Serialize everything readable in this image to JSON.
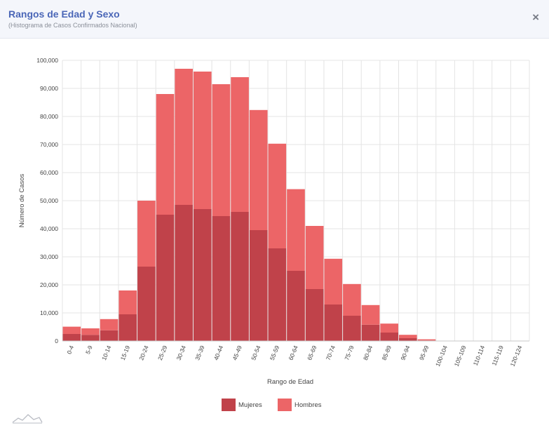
{
  "header": {
    "title": "Rangos de Edad y Sexo",
    "subtitle": "(Histograma de Casos Confirmados Nacional)",
    "close_icon": "×"
  },
  "colors": {
    "mujeres": "#c0424a",
    "hombres": "#ec6567",
    "grid": "#e4e4e4",
    "axis": "#c8c8c8",
    "text": "#444444",
    "title": "#4a66b7"
  },
  "chart_data": {
    "type": "bar",
    "stacked": true,
    "xlabel": "Rango de Edad",
    "ylabel": "Número de Casos",
    "ylim": [
      0,
      100000
    ],
    "yticks": [
      0,
      10000,
      20000,
      30000,
      40000,
      50000,
      60000,
      70000,
      80000,
      90000,
      100000
    ],
    "ytick_labels": [
      "0",
      "10,000",
      "20,000",
      "30,000",
      "40,000",
      "50,000",
      "60,000",
      "70,000",
      "80,000",
      "90,000",
      "100,000"
    ],
    "grid": true,
    "legend": "bottom-center",
    "categories": [
      "0-4",
      "5-9",
      "10-14",
      "15-19",
      "20-24",
      "25-29",
      "30-34",
      "35-39",
      "40-44",
      "45-49",
      "50-54",
      "55-59",
      "60-64",
      "65-69",
      "70-74",
      "75-79",
      "80-84",
      "85-89",
      "90-94",
      "95-99",
      "100-104",
      "105-109",
      "110-114",
      "115-119",
      "120-124"
    ],
    "series": [
      {
        "name": "Mujeres",
        "values": [
          2500,
          2200,
          3800,
          9500,
          26500,
          45000,
          48500,
          47000,
          44500,
          46000,
          39500,
          33000,
          25000,
          18500,
          13000,
          9000,
          5800,
          3000,
          1000,
          200,
          30,
          0,
          0,
          0,
          0
        ]
      },
      {
        "name": "Hombres",
        "values": [
          2600,
          2300,
          4000,
          8500,
          23500,
          43000,
          48500,
          49000,
          47000,
          48000,
          42800,
          37300,
          29100,
          22500,
          16300,
          11300,
          7000,
          3200,
          1200,
          400,
          50,
          0,
          0,
          0,
          0
        ]
      }
    ]
  }
}
